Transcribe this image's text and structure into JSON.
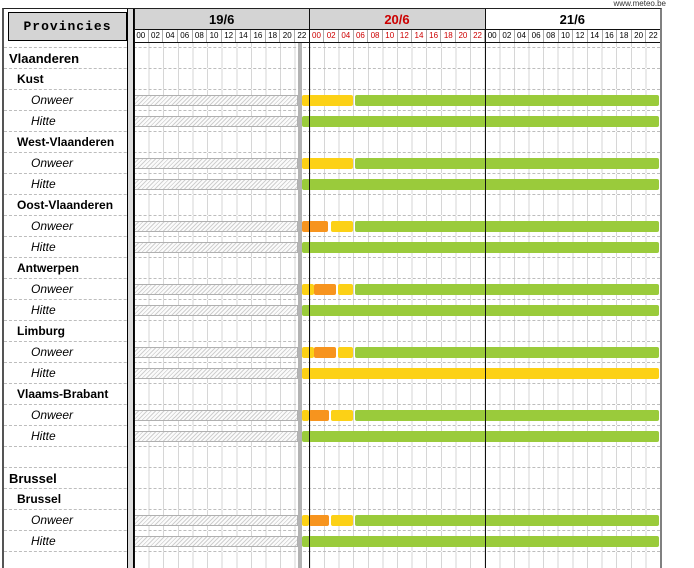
{
  "site_link": "www.meteo.be",
  "header": {
    "provinces_label": "Provincies",
    "hours": [
      "00",
      "02",
      "04",
      "06",
      "08",
      "10",
      "12",
      "14",
      "16",
      "18",
      "20",
      "22"
    ],
    "days": [
      {
        "date": "19/6",
        "today": false,
        "shaded": true
      },
      {
        "date": "20/6",
        "today": true,
        "shaded": true
      },
      {
        "date": "21/6",
        "today": false,
        "shaded": false
      }
    ]
  },
  "colors": {
    "yellow": "#fcd116",
    "orange": "#f7941e",
    "green": "#9acb3b",
    "header_bg": "#d4d4d4",
    "today_red": "#cc0000",
    "now_marker": "#b3b3b3"
  },
  "timeline": {
    "total_hours": 72,
    "past_hatch_from_hour": 0,
    "past_hatch_to_hour": 22.45,
    "now_hour": 23
  },
  "chart_data": {
    "type": "table",
    "title": "Provincial weather warning timeline (meteo.be)",
    "days": [
      "19/6",
      "20/6",
      "21/6"
    ],
    "hour_ticks": [
      "00",
      "02",
      "04",
      "06",
      "08",
      "10",
      "12",
      "14",
      "16",
      "18",
      "20",
      "22"
    ],
    "warning_levels": [
      "green",
      "yellow",
      "orange"
    ],
    "rows": [
      {
        "kind": "region",
        "label": "Vlaanderen"
      },
      {
        "kind": "province",
        "label": "Kust"
      },
      {
        "kind": "warning",
        "label": "Onweer",
        "segments": [
          {
            "level": "yellow",
            "from": 23,
            "to": 30
          },
          {
            "level": "green",
            "from": 30.2,
            "to": 71.8
          }
        ]
      },
      {
        "kind": "warning",
        "label": "Hitte",
        "segments": [
          {
            "level": "green",
            "from": 23,
            "to": 71.8
          }
        ]
      },
      {
        "kind": "province",
        "label": "West-Vlaanderen"
      },
      {
        "kind": "warning",
        "label": "Onweer",
        "segments": [
          {
            "level": "yellow",
            "from": 23,
            "to": 30
          },
          {
            "level": "green",
            "from": 30.2,
            "to": 71.8
          }
        ]
      },
      {
        "kind": "warning",
        "label": "Hitte",
        "segments": [
          {
            "level": "green",
            "from": 23,
            "to": 71.8
          }
        ]
      },
      {
        "kind": "province",
        "label": "Oost-Vlaanderen"
      },
      {
        "kind": "warning",
        "label": "Onweer",
        "segments": [
          {
            "level": "orange",
            "from": 23,
            "to": 26.6
          },
          {
            "level": "yellow",
            "from": 26.9,
            "to": 30
          },
          {
            "level": "green",
            "from": 30.2,
            "to": 71.8
          }
        ]
      },
      {
        "kind": "warning",
        "label": "Hitte",
        "segments": [
          {
            "level": "green",
            "from": 23,
            "to": 71.8
          }
        ]
      },
      {
        "kind": "province",
        "label": "Antwerpen"
      },
      {
        "kind": "warning",
        "label": "Onweer",
        "segments": [
          {
            "level": "yellow",
            "from": 23,
            "to": 24.7
          },
          {
            "level": "orange",
            "from": 24.7,
            "to": 27.6
          },
          {
            "level": "yellow",
            "from": 27.9,
            "to": 30
          },
          {
            "level": "green",
            "from": 30.2,
            "to": 71.8
          }
        ]
      },
      {
        "kind": "warning",
        "label": "Hitte",
        "segments": [
          {
            "level": "green",
            "from": 23,
            "to": 71.8
          }
        ]
      },
      {
        "kind": "province",
        "label": "Limburg"
      },
      {
        "kind": "warning",
        "label": "Onweer",
        "segments": [
          {
            "level": "yellow",
            "from": 23,
            "to": 24.7
          },
          {
            "level": "orange",
            "from": 24.7,
            "to": 27.6
          },
          {
            "level": "yellow",
            "from": 27.9,
            "to": 30
          },
          {
            "level": "green",
            "from": 30.2,
            "to": 71.8
          }
        ]
      },
      {
        "kind": "warning",
        "label": "Hitte",
        "segments": [
          {
            "level": "yellow",
            "from": 23,
            "to": 71.8
          }
        ]
      },
      {
        "kind": "province",
        "label": "Vlaams-Brabant"
      },
      {
        "kind": "warning",
        "label": "Onweer",
        "segments": [
          {
            "level": "yellow",
            "from": 23,
            "to": 23.9
          },
          {
            "level": "orange",
            "from": 23.9,
            "to": 26.7
          },
          {
            "level": "yellow",
            "from": 27,
            "to": 30
          },
          {
            "level": "green",
            "from": 30.2,
            "to": 71.8
          }
        ]
      },
      {
        "kind": "warning",
        "label": "Hitte",
        "segments": [
          {
            "level": "green",
            "from": 23,
            "to": 71.8
          }
        ]
      },
      {
        "kind": "spacer",
        "label": ""
      },
      {
        "kind": "region",
        "label": "Brussel"
      },
      {
        "kind": "province",
        "label": "Brussel"
      },
      {
        "kind": "warning",
        "label": "Onweer",
        "segments": [
          {
            "level": "yellow",
            "from": 23,
            "to": 23.9
          },
          {
            "level": "orange",
            "from": 23.9,
            "to": 26.7
          },
          {
            "level": "yellow",
            "from": 27,
            "to": 30
          },
          {
            "level": "green",
            "from": 30.2,
            "to": 71.8
          }
        ]
      },
      {
        "kind": "warning",
        "label": "Hitte",
        "segments": [
          {
            "level": "green",
            "from": 23,
            "to": 71.8
          }
        ]
      }
    ]
  }
}
